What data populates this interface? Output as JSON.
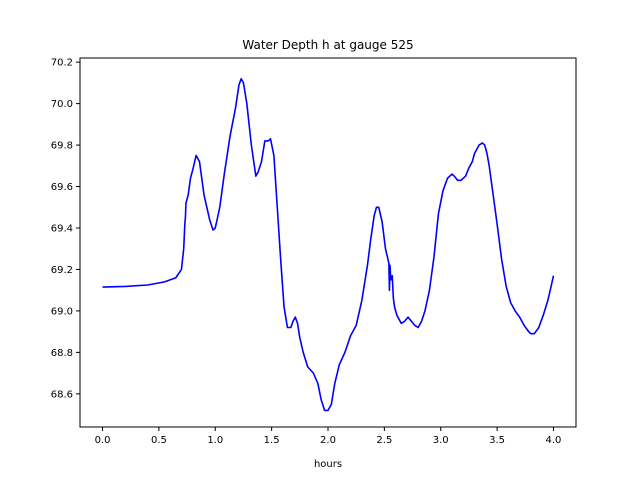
{
  "chart_data": {
    "type": "line",
    "title": "Water Depth h at gauge 525",
    "xlabel": "hours",
    "ylabel": "",
    "xlim": [
      -0.2,
      4.2
    ],
    "ylim": [
      68.44,
      70.22
    ],
    "xticks": [
      0.0,
      0.5,
      1.0,
      1.5,
      2.0,
      2.5,
      3.0,
      3.5,
      4.0
    ],
    "xtick_labels": [
      "0.0",
      "0.5",
      "1.0",
      "1.5",
      "2.0",
      "2.5",
      "3.0",
      "3.5",
      "4.0"
    ],
    "yticks": [
      68.6,
      68.8,
      69.0,
      69.2,
      69.4,
      69.6,
      69.8,
      70.0,
      70.2
    ],
    "ytick_labels": [
      "68.6",
      "68.8",
      "69.0",
      "69.2",
      "69.4",
      "69.6",
      "69.8",
      "70.0",
      "70.2"
    ],
    "grid": false,
    "series": [
      {
        "color": "#0000ff",
        "x": [
          0.0,
          0.2,
          0.4,
          0.55,
          0.65,
          0.7,
          0.72,
          0.73,
          0.735,
          0.74,
          0.76,
          0.78,
          0.8,
          0.83,
          0.86,
          0.9,
          0.95,
          0.98,
          1.0,
          1.04,
          1.08,
          1.13,
          1.18,
          1.21,
          1.23,
          1.25,
          1.28,
          1.32,
          1.36,
          1.38,
          1.41,
          1.44,
          1.47,
          1.49,
          1.52,
          1.55,
          1.58,
          1.61,
          1.64,
          1.67,
          1.69,
          1.71,
          1.73,
          1.75,
          1.78,
          1.82,
          1.87,
          1.91,
          1.94,
          1.97,
          2.0,
          2.03,
          2.06,
          2.1,
          2.15,
          2.2,
          2.25,
          2.3,
          2.35,
          2.38,
          2.41,
          2.43,
          2.45,
          2.48,
          2.51,
          2.54,
          2.545,
          2.55,
          2.555,
          2.56,
          2.57,
          2.58,
          2.59,
          2.61,
          2.65,
          2.68,
          2.71,
          2.74,
          2.77,
          2.8,
          2.83,
          2.86,
          2.9,
          2.94,
          2.98,
          3.02,
          3.06,
          3.1,
          3.12,
          3.15,
          3.18,
          3.22,
          3.25,
          3.28,
          3.3,
          3.34,
          3.37,
          3.39,
          3.41,
          3.43,
          3.46,
          3.5,
          3.54,
          3.58,
          3.62,
          3.66,
          3.7,
          3.74,
          3.78,
          3.8,
          3.83,
          3.87,
          3.91,
          3.95,
          3.98,
          4.0
        ],
        "y": [
          69.115,
          69.118,
          69.125,
          69.14,
          69.16,
          69.2,
          69.3,
          69.42,
          69.45,
          69.52,
          69.56,
          69.64,
          69.68,
          69.75,
          69.72,
          69.56,
          69.44,
          69.39,
          69.4,
          69.5,
          69.66,
          69.84,
          69.98,
          70.09,
          70.12,
          70.1,
          70.0,
          69.8,
          69.65,
          69.67,
          69.72,
          69.82,
          69.82,
          69.83,
          69.75,
          69.5,
          69.25,
          69.02,
          68.92,
          68.92,
          68.95,
          68.97,
          68.94,
          68.87,
          68.8,
          68.73,
          68.7,
          68.65,
          68.57,
          68.52,
          68.52,
          68.55,
          68.65,
          68.74,
          68.8,
          68.88,
          68.93,
          69.05,
          69.22,
          69.35,
          69.46,
          69.5,
          69.5,
          69.43,
          69.3,
          69.23,
          69.1,
          69.22,
          69.17,
          69.15,
          69.17,
          69.06,
          69.02,
          68.98,
          68.94,
          68.95,
          68.97,
          68.95,
          68.93,
          68.92,
          68.95,
          69.0,
          69.1,
          69.26,
          69.47,
          69.58,
          69.64,
          69.66,
          69.65,
          69.63,
          69.63,
          69.65,
          69.69,
          69.72,
          69.76,
          69.8,
          69.81,
          69.8,
          69.76,
          69.7,
          69.58,
          69.42,
          69.25,
          69.12,
          69.04,
          69.0,
          68.97,
          68.93,
          68.9,
          68.89,
          68.89,
          68.92,
          68.98,
          69.05,
          69.12,
          69.17
        ]
      }
    ]
  }
}
